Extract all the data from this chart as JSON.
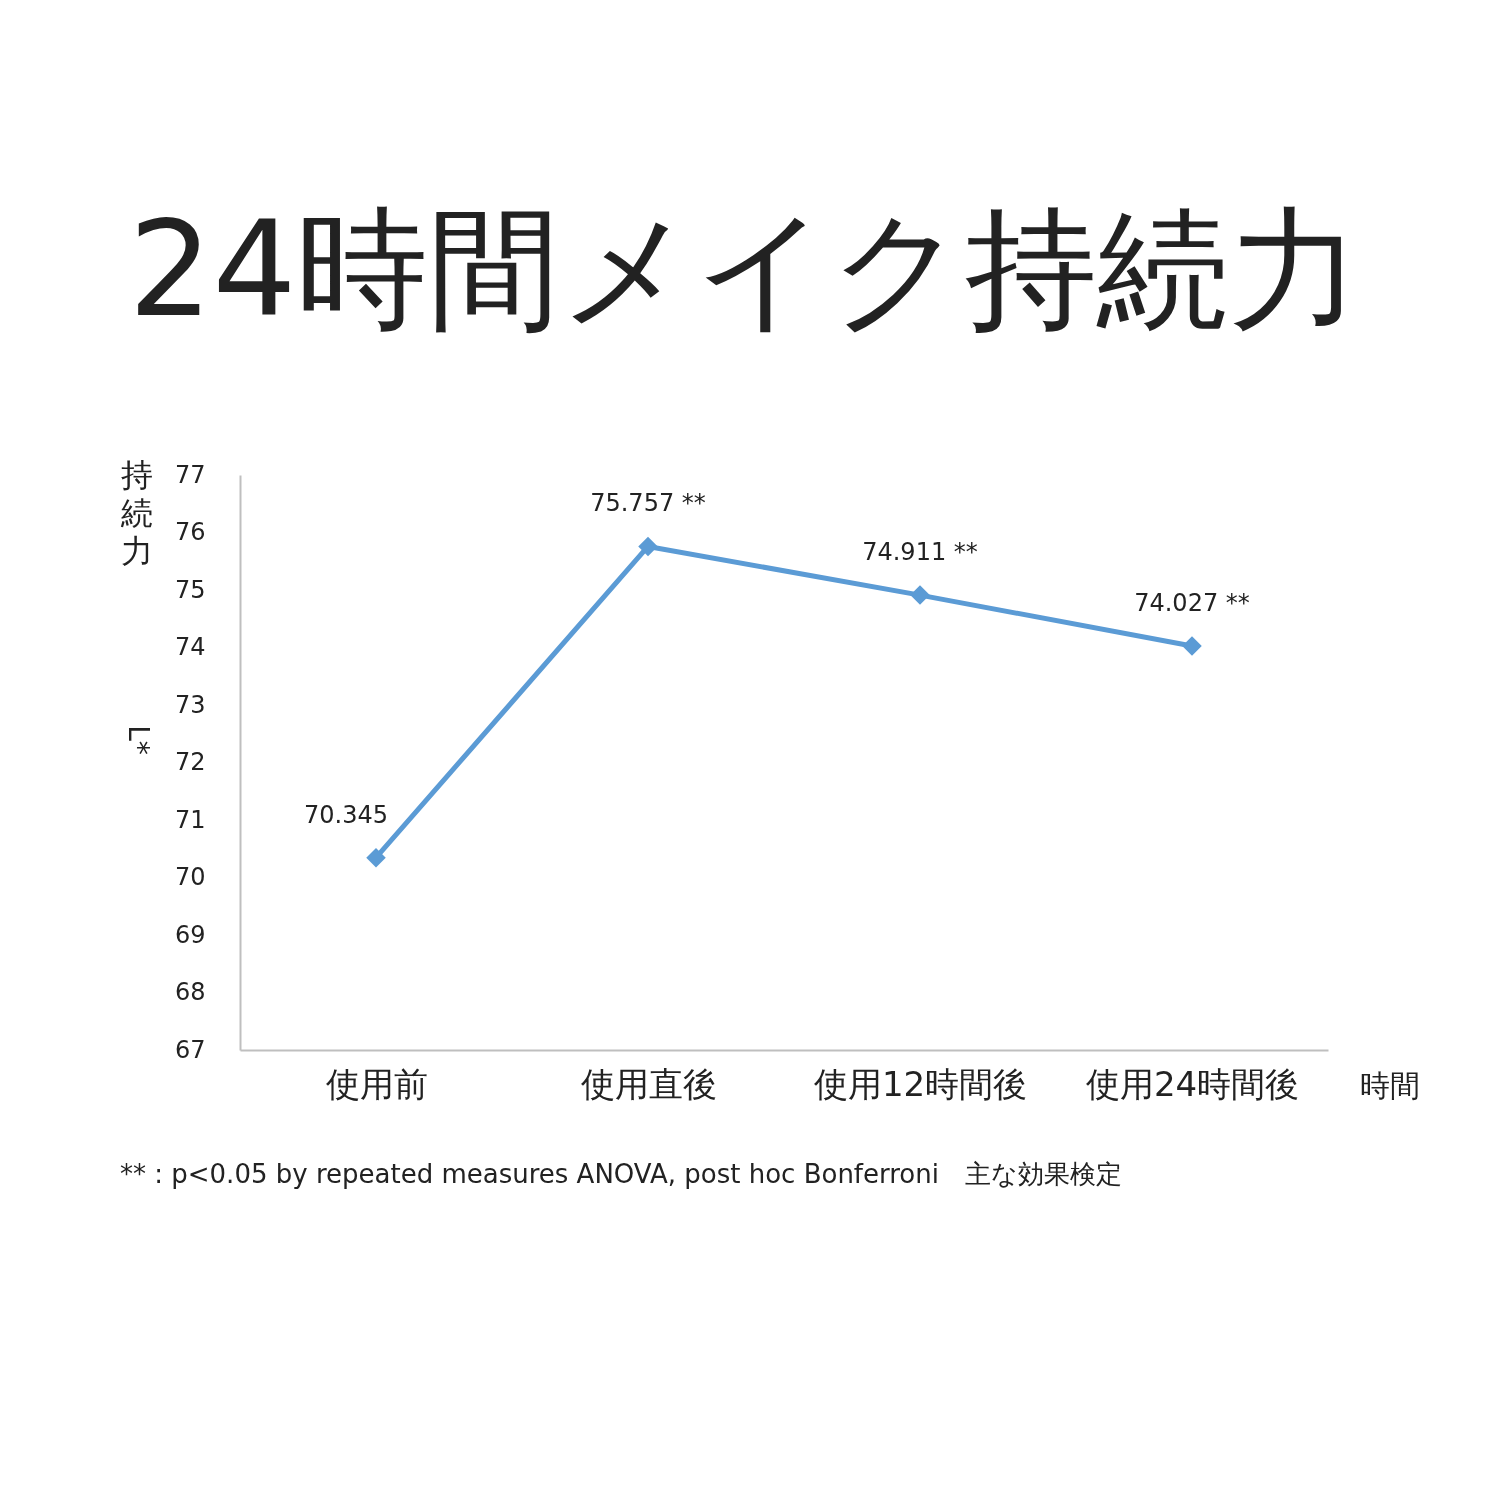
{
  "chart_data": {
    "type": "line",
    "title": "24時間メイク持続力",
    "categories": [
      "使用前",
      "使用直後",
      "使用12時間後",
      "使用24時間後"
    ],
    "series": [
      {
        "color": "#5b9bd5",
        "values": [
          70.345,
          75.757,
          74.911,
          74.027
        ],
        "value_labels": [
          "70.345",
          "75.757 **",
          "74.911 **",
          "74.027 **"
        ]
      }
    ],
    "xlabel": "時間",
    "ylabel": "持続力",
    "ylim": [
      67,
      77
    ],
    "yticks": [
      67,
      68,
      69,
      70,
      71,
      72,
      73,
      74,
      75,
      76,
      77
    ],
    "marker": "diamond",
    "line_style": "solid",
    "grid": false,
    "annotations": [
      "L*",
      "** : p<0.05 by repeated measures ANOVA, post hoc Bonferroni　主な効果検定"
    ]
  }
}
